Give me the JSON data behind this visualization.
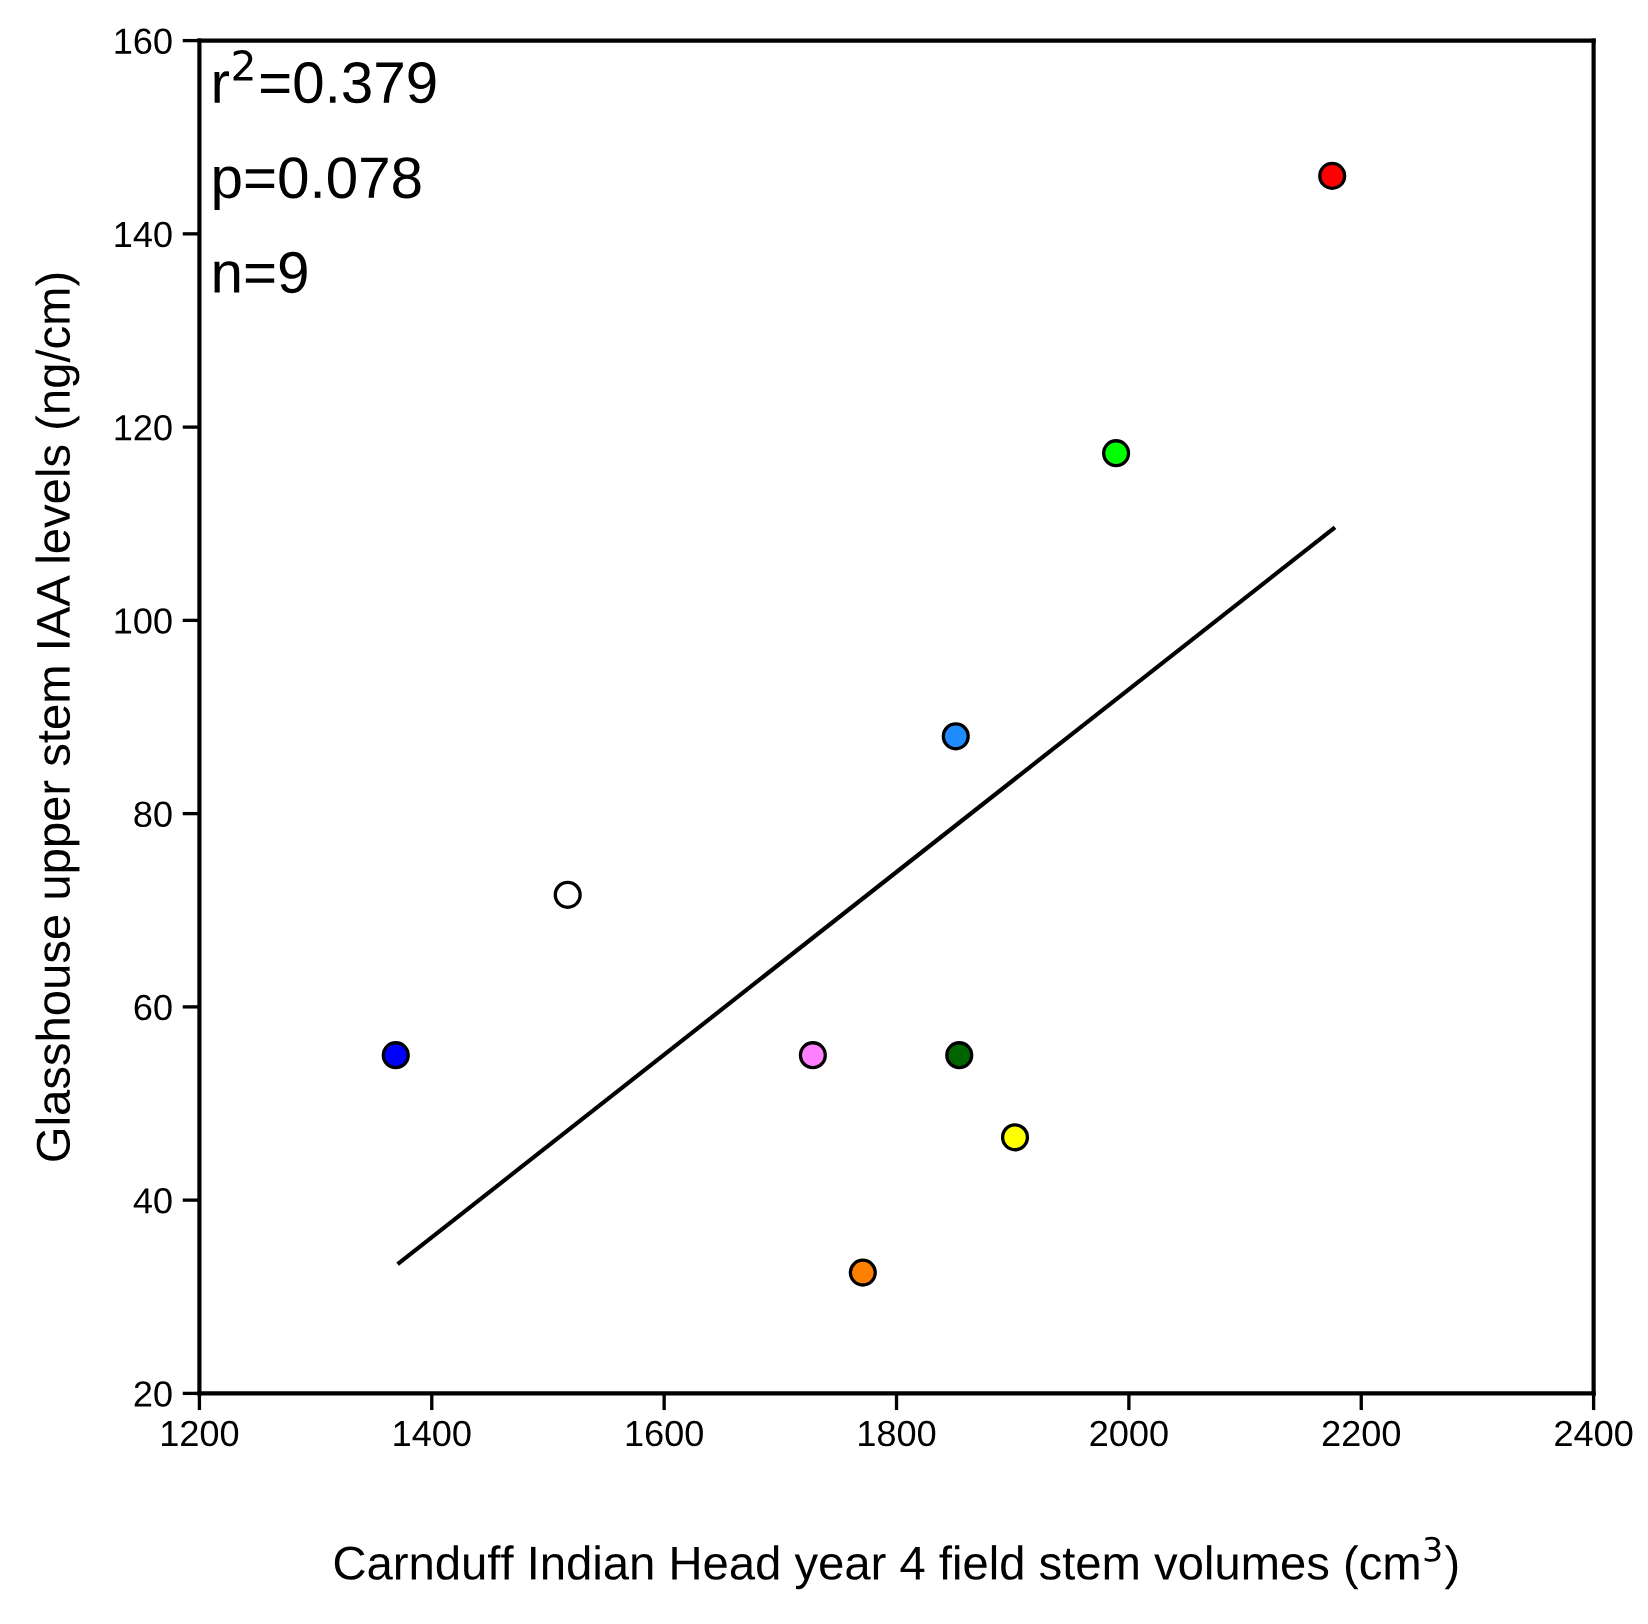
{
  "chart_data": {
    "type": "scatter",
    "xlabel": "Carnduff Indian Head year 4 field stem volumes (cm$^{3}$)",
    "ylabel": "Glasshouse upper stem IAA levels (ng/cm)",
    "annotations": [
      "r$^{2}$=0.379",
      "p=0.078",
      "n=9"
    ],
    "xlim": [
      1200,
      2400
    ],
    "xticks": [
      1200,
      1400,
      1600,
      1800,
      2000,
      2200,
      2400
    ],
    "ylim": [
      20,
      160
    ],
    "yticks": [
      20,
      40,
      60,
      80,
      100,
      120,
      140,
      160
    ],
    "grid": false,
    "series": [
      {
        "marker": "circle",
        "x": [
          1369,
          1517,
          1728,
          1771,
          1851,
          1854,
          1902,
          1989,
          2175
        ],
        "values": [
          55,
          71.6,
          55,
          32.5,
          88,
          55,
          46.5,
          117.3,
          146
        ],
        "colors": [
          "#0000ff",
          "#ffffff",
          "#ff80ff",
          "#ff8000",
          "#1e8cff",
          "#006400",
          "#ffff00",
          "#00ff00",
          "#ff0000"
        ]
      },
      {
        "type": "line",
        "x": [
          1372,
          2176
        ],
        "values": [
          33.5,
          109.5
        ],
        "color": "#000000",
        "line_style": "solid"
      }
    ]
  }
}
